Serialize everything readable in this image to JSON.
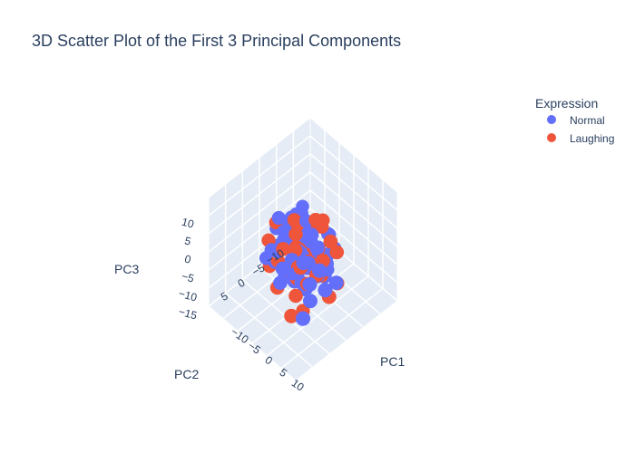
{
  "chart_data": {
    "type": "scatter",
    "title": "3D Scatter Plot of the First 3 Principal Components",
    "legend_title": "Expression",
    "legend_position": "top-right",
    "axes": {
      "x": {
        "label": "PC1",
        "ticks": [
          "−10",
          "−5",
          "0",
          "5",
          "10"
        ]
      },
      "y": {
        "label": "PC2",
        "ticks": [
          "−10",
          "−5",
          "0",
          "5"
        ]
      },
      "z": {
        "label": "PC3",
        "ticks": [
          "10",
          "5",
          "0",
          "−5",
          "−10",
          "−15"
        ]
      }
    },
    "series": [
      {
        "name": "Normal",
        "color": "#636efa",
        "points": [
          [
            -6,
            2,
            6
          ],
          [
            -4,
            -3,
            5
          ],
          [
            -2,
            4,
            4
          ],
          [
            0,
            -1,
            7
          ],
          [
            2,
            3,
            3
          ],
          [
            4,
            -4,
            4
          ],
          [
            6,
            1,
            5
          ],
          [
            -5,
            -2,
            2
          ],
          [
            -3,
            5,
            1
          ],
          [
            -1,
            -5,
            2
          ],
          [
            1,
            2,
            0
          ],
          [
            3,
            -2,
            1
          ],
          [
            5,
            4,
            2
          ],
          [
            7,
            -1,
            0
          ],
          [
            -6,
            3,
            -1
          ],
          [
            -4,
            -1,
            -2
          ],
          [
            -2,
            1,
            -1
          ],
          [
            0,
            3,
            -3
          ],
          [
            2,
            -3,
            -2
          ],
          [
            4,
            2,
            -1
          ],
          [
            6,
            -2,
            -3
          ],
          [
            -5,
            4,
            -4
          ],
          [
            -3,
            -4,
            -5
          ],
          [
            -1,
            0,
            -4
          ],
          [
            1,
            -2,
            -6
          ],
          [
            3,
            3,
            -5
          ],
          [
            5,
            0,
            -4
          ],
          [
            -7,
            -3,
            -6
          ],
          [
            -2,
            5,
            -7
          ],
          [
            0,
            -4,
            -8
          ],
          [
            2,
            1,
            -9
          ],
          [
            4,
            -3,
            -7
          ],
          [
            -4,
            2,
            -9
          ],
          [
            6,
            3,
            -8
          ],
          [
            -6,
            0,
            3
          ],
          [
            -1,
            2,
            1
          ],
          [
            1,
            -1,
            3
          ],
          [
            3,
            0,
            6
          ],
          [
            -3,
            1,
            0
          ],
          [
            0,
            0,
            -2
          ],
          [
            8,
            2,
            1
          ],
          [
            -8,
            1,
            1
          ],
          [
            2,
            5,
            2
          ],
          [
            -2,
            -2,
            3
          ],
          [
            5,
            -5,
            0
          ],
          [
            -5,
            5,
            0
          ],
          [
            7,
            4,
            -2
          ],
          [
            -7,
            -4,
            2
          ],
          [
            1,
            4,
            -3
          ],
          [
            -1,
            -3,
            -5
          ],
          [
            3,
            -5,
            -3
          ],
          [
            -3,
            3,
            5
          ],
          [
            0,
            6,
            -1
          ],
          [
            4,
            5,
            0
          ],
          [
            -4,
            -5,
            0
          ],
          [
            2,
            -6,
            1
          ],
          [
            8,
            -3,
            -6
          ],
          [
            -8,
            4,
            -5
          ],
          [
            6,
            5,
            4
          ],
          [
            -6,
            -5,
            4
          ],
          [
            10,
            2,
            -3
          ],
          [
            -3,
            0,
            -11
          ],
          [
            7,
            6,
            -10
          ],
          [
            -6,
            -2,
            -10
          ],
          [
            1,
            0,
            4
          ],
          [
            -2,
            3,
            2
          ],
          [
            3,
            1,
            -1
          ],
          [
            0,
            -2,
            1
          ],
          [
            -4,
            0,
            6
          ],
          [
            5,
            2,
            7
          ]
        ]
      },
      {
        "name": "Laughing",
        "color": "#ef553b",
        "points": [
          [
            -3,
            0,
            6
          ],
          [
            1,
            3,
            7
          ],
          [
            3,
            -3,
            6
          ],
          [
            -7,
            2,
            4
          ],
          [
            6,
            -3,
            4
          ],
          [
            -2,
            -4,
            3
          ],
          [
            2,
            4,
            4
          ],
          [
            -6,
            -3,
            1
          ],
          [
            0,
            2,
            2
          ],
          [
            4,
            -1,
            2
          ],
          [
            8,
            1,
            3
          ],
          [
            -5,
            1,
            -1
          ],
          [
            -1,
            -2,
            0
          ],
          [
            3,
            4,
            0
          ],
          [
            7,
            -4,
            1
          ],
          [
            -4,
            4,
            -3
          ],
          [
            0,
            -3,
            -3
          ],
          [
            2,
            0,
            -2
          ],
          [
            5,
            3,
            -4
          ],
          [
            -7,
            -1,
            -5
          ],
          [
            -2,
            2,
            -6
          ],
          [
            4,
            -2,
            -6
          ],
          [
            -5,
            -4,
            -8
          ],
          [
            -3,
            5,
            -9
          ],
          [
            1,
            3,
            -10
          ],
          [
            9,
            0,
            -7
          ],
          [
            6,
            -5,
            -9
          ],
          [
            -8,
            3,
            -8
          ],
          [
            -4,
            -5,
            -11
          ],
          [
            3,
            6,
            -12
          ],
          [
            0,
            0,
            -17
          ],
          [
            -9,
            -2,
            -12
          ],
          [
            1,
            -5,
            5
          ],
          [
            -1,
            5,
            3
          ],
          [
            5,
            5,
            2
          ],
          [
            -6,
            5,
            2
          ],
          [
            7,
            2,
            -1
          ],
          [
            -3,
            -1,
            4
          ],
          [
            2,
            -2,
            8
          ],
          [
            -1,
            1,
            -8
          ]
        ]
      }
    ],
    "axis_range": [
      -15,
      15
    ]
  }
}
